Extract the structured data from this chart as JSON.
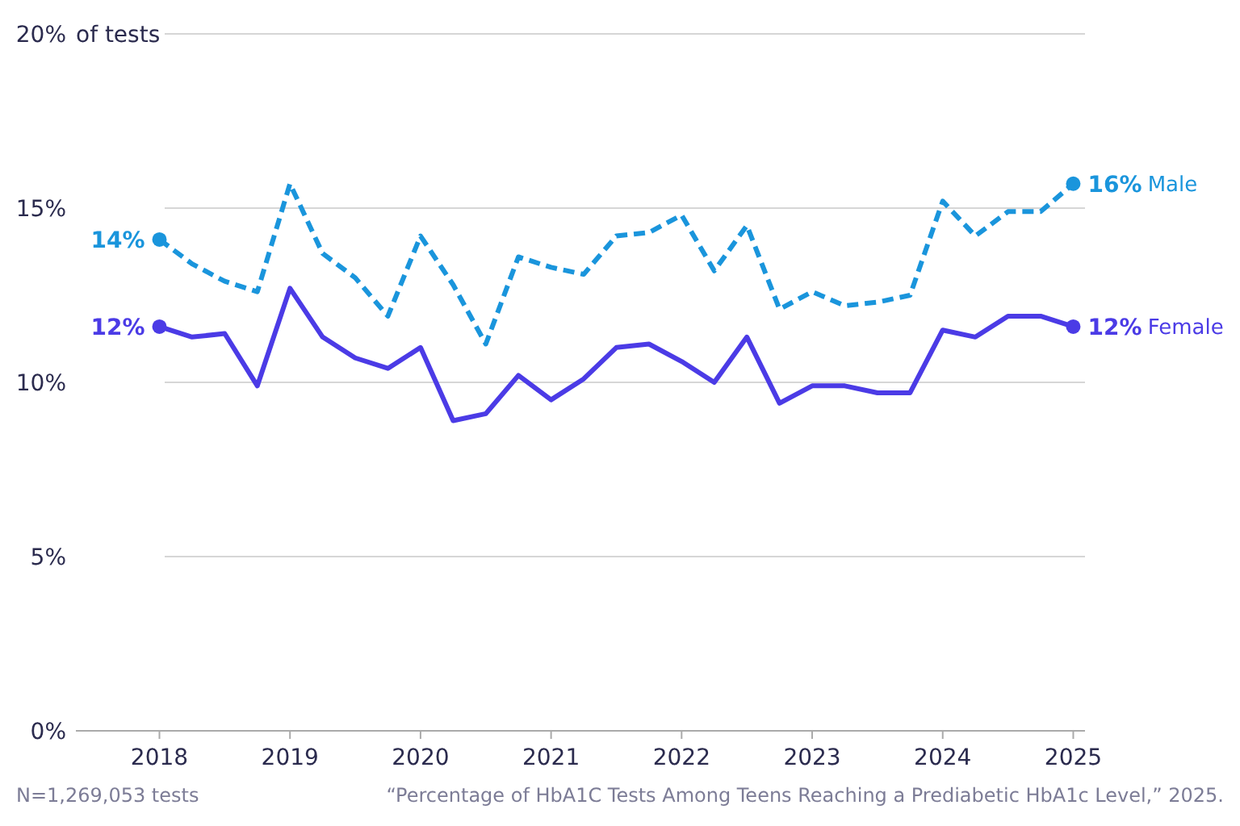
{
  "chart_data": {
    "type": "line",
    "ylabel": "of tests",
    "x": [
      2018,
      2018.25,
      2018.5,
      2018.75,
      2019,
      2019.25,
      2019.5,
      2019.75,
      2020,
      2020.25,
      2020.5,
      2020.75,
      2021,
      2021.25,
      2021.5,
      2021.75,
      2022,
      2022.25,
      2022.5,
      2022.75,
      2023,
      2023.25,
      2023.5,
      2023.75,
      2024,
      2024.25,
      2024.5,
      2024.75,
      2025
    ],
    "series": [
      {
        "name": "Male",
        "color": "#1a95dc",
        "line_style": "dashed",
        "values": [
          14.1,
          13.4,
          12.9,
          12.6,
          15.7,
          13.7,
          13.0,
          11.9,
          14.2,
          12.8,
          11.1,
          13.6,
          13.3,
          13.1,
          14.2,
          14.3,
          14.8,
          13.2,
          14.5,
          12.1,
          12.6,
          12.2,
          12.3,
          12.5,
          15.2,
          14.2,
          14.9,
          14.9,
          15.7
        ],
        "value_labels": [
          "14%",
          null,
          null,
          null,
          null,
          null,
          null,
          null,
          null,
          null,
          null,
          null,
          null,
          null,
          null,
          null,
          null,
          null,
          null,
          null,
          null,
          null,
          null,
          null,
          null,
          null,
          null,
          null,
          "16%"
        ]
      },
      {
        "name": "Female",
        "color": "#4b3be6",
        "line_style": "solid",
        "values": [
          11.6,
          11.3,
          11.4,
          9.9,
          12.7,
          11.3,
          10.7,
          10.4,
          11.0,
          8.9,
          9.1,
          10.2,
          9.5,
          10.1,
          11.0,
          11.1,
          10.6,
          10.0,
          11.3,
          9.4,
          9.9,
          9.9,
          9.7,
          9.7,
          11.5,
          11.3,
          11.9,
          11.9,
          11.6
        ],
        "value_labels": [
          "12%",
          null,
          null,
          null,
          null,
          null,
          null,
          null,
          null,
          null,
          null,
          null,
          null,
          null,
          null,
          null,
          null,
          null,
          null,
          null,
          null,
          null,
          null,
          null,
          null,
          null,
          null,
          null,
          "12%"
        ]
      }
    ],
    "xlim": [
      2017.36,
      2025.09
    ],
    "xticks": [
      2018,
      2019,
      2020,
      2021,
      2022,
      2023,
      2024,
      2025
    ],
    "ylim": [
      0,
      20
    ],
    "yticks": [
      {
        "value": 0,
        "label": "0%"
      },
      {
        "value": 5,
        "label": "5%"
      },
      {
        "value": 10,
        "label": "10%"
      },
      {
        "value": 15,
        "label": "15%"
      },
      {
        "value": 20,
        "label": "20%"
      }
    ],
    "grid": "y",
    "annotations": [
      "N=1,269,053 tests",
      "“Percentage of HbA1C Tests Among Teens Reaching a Prediabetic HbA1c Level,” 2025."
    ]
  }
}
